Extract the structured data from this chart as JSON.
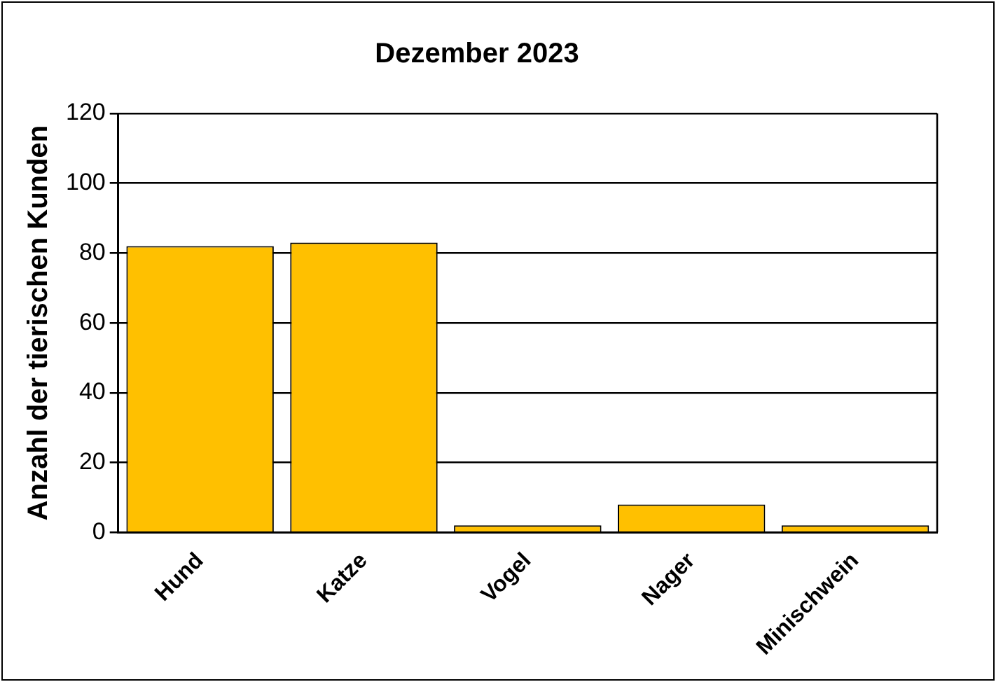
{
  "chart_data": {
    "type": "bar",
    "title": "Dezember 2023",
    "ylabel": "Anzahl der tierischen Kunden",
    "categories": [
      "Hund",
      "Katze",
      "Vogel",
      "Nager",
      "Minischwein"
    ],
    "values": [
      82,
      83,
      2,
      8,
      2
    ],
    "color": "#ffc000",
    "ylim": [
      0,
      120
    ],
    "yticks": [
      0,
      20,
      40,
      60,
      80,
      100,
      120
    ],
    "grid": "y"
  }
}
